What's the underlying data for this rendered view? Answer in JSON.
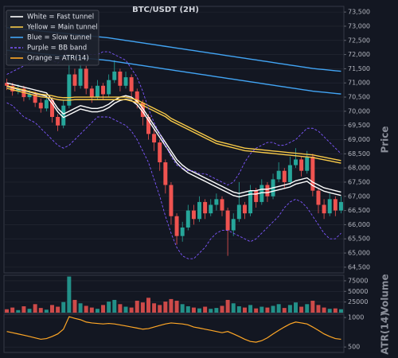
{
  "chart_data": [
    {
      "type": "candlestick",
      "title": "BTC/USDT (2H)",
      "ylabel": "Price",
      "grid": true,
      "up_color": "#26a69a",
      "down_color": "#ef5350",
      "ylim": [
        64300,
        73700
      ],
      "yticks": [
        {
          "value": 64500,
          "label": "64,500"
        },
        {
          "value": 65000,
          "label": "65,000"
        },
        {
          "value": 65500,
          "label": "65,500"
        },
        {
          "value": 66000,
          "label": "66,000"
        },
        {
          "value": 66500,
          "label": "66,500"
        },
        {
          "value": 67000,
          "label": "67,000"
        },
        {
          "value": 67500,
          "label": "67,500"
        },
        {
          "value": 68000,
          "label": "68,000"
        },
        {
          "value": 68500,
          "label": "68,500"
        },
        {
          "value": 69000,
          "label": "69,000"
        },
        {
          "value": 69500,
          "label": "69,500"
        },
        {
          "value": 70000,
          "label": "70,000"
        },
        {
          "value": 70500,
          "label": "70,500"
        },
        {
          "value": 71000,
          "label": "71,000"
        },
        {
          "value": 71500,
          "label": "71,500"
        },
        {
          "value": 72000,
          "label": "72,000"
        },
        {
          "value": 72500,
          "label": "72,500"
        },
        {
          "value": 73000,
          "label": "73,000"
        },
        {
          "value": 73500,
          "label": "73,500"
        }
      ],
      "open": [
        71000,
        70900,
        70700,
        70800,
        70500,
        70600,
        70300,
        70100,
        70400,
        69800,
        69500,
        70200,
        71300,
        70900,
        71500,
        70800,
        70500,
        70900,
        70600,
        71100,
        71400,
        70900,
        71200,
        70700,
        70300,
        69800,
        69200,
        68900,
        68200,
        67400,
        66300,
        65600,
        65900,
        66500,
        66200,
        66800,
        66400,
        66700,
        66900,
        66500,
        65800,
        66200,
        66700,
        66400,
        67200,
        66800,
        67400,
        67000,
        67600,
        67900,
        67500,
        68100,
        68300,
        67900,
        68400,
        67200,
        66700,
        66400,
        66900,
        66500
      ],
      "high": [
        71150,
        71000,
        70950,
        70900,
        70750,
        70700,
        70450,
        70550,
        70500,
        69900,
        70400,
        71900,
        71500,
        71700,
        71600,
        70900,
        71100,
        71000,
        71300,
        71800,
        71500,
        71400,
        71300,
        70800,
        70400,
        69900,
        69400,
        69000,
        68300,
        67500,
        66400,
        66100,
        66700,
        66700,
        67000,
        66900,
        66900,
        67100,
        67000,
        66600,
        66400,
        67500,
        66800,
        67400,
        67300,
        67600,
        67500,
        67800,
        68200,
        68000,
        68400,
        68700,
        68400,
        68600,
        68500,
        67300,
        66900,
        67100,
        67000,
        67000
      ],
      "low": [
        70750,
        70550,
        70600,
        70350,
        70400,
        70150,
        69950,
        70000,
        69600,
        69300,
        69400,
        70100,
        70700,
        70800,
        70600,
        70300,
        70400,
        70400,
        70500,
        71000,
        70700,
        70800,
        70500,
        70100,
        69500,
        69000,
        68600,
        67900,
        67100,
        66000,
        65300,
        65400,
        65800,
        66000,
        66100,
        66200,
        66300,
        66500,
        66300,
        64900,
        65600,
        66100,
        66200,
        66300,
        66600,
        66700,
        66800,
        66900,
        67500,
        67300,
        67400,
        68000,
        67700,
        67800,
        67000,
        66400,
        66200,
        66300,
        66300,
        66400
      ],
      "close": [
        70900,
        70700,
        70800,
        70500,
        70600,
        70300,
        70100,
        70400,
        69800,
        69500,
        70200,
        71300,
        70900,
        71500,
        70800,
        70500,
        70900,
        70600,
        71100,
        71400,
        70900,
        71200,
        70700,
        70300,
        69800,
        69200,
        68900,
        68200,
        67400,
        66300,
        65600,
        65900,
        66500,
        66200,
        66800,
        66400,
        66700,
        66900,
        66500,
        65800,
        66200,
        66700,
        66400,
        67200,
        66800,
        67400,
        67000,
        67600,
        67900,
        67500,
        68100,
        68300,
        67900,
        68400,
        67200,
        66700,
        66400,
        66900,
        66500,
        66800
      ],
      "overlays": [
        {
          "name": "White = Fast tunnel",
          "color": "#ffffff",
          "dash": false,
          "upper": [
            71000,
            70950,
            70900,
            70850,
            70800,
            70750,
            70700,
            70650,
            70400,
            70100,
            69900,
            70000,
            70100,
            70200,
            70150,
            70100,
            70100,
            70150,
            70250,
            70400,
            70500,
            70550,
            70500,
            70350,
            70100,
            69800,
            69500,
            69200,
            68900,
            68600,
            68300,
            68100,
            67950,
            67850,
            67750,
            67650,
            67550,
            67450,
            67350,
            67250,
            67150,
            67100,
            67150,
            67200,
            67200,
            67250,
            67250,
            67300,
            67350,
            67400,
            67450,
            67550,
            67600,
            67650,
            67500,
            67400,
            67300,
            67250,
            67200,
            67150
          ],
          "lower": [
            70880,
            70830,
            70780,
            70730,
            70680,
            70630,
            70580,
            70530,
            70280,
            69980,
            69780,
            69880,
            69980,
            70080,
            70030,
            69980,
            69980,
            70030,
            70130,
            70280,
            70380,
            70430,
            70380,
            70230,
            69980,
            69680,
            69380,
            69080,
            68780,
            68480,
            68180,
            67980,
            67830,
            67730,
            67630,
            67530,
            67430,
            67330,
            67230,
            67130,
            67030,
            66980,
            67030,
            67080,
            67080,
            67130,
            67130,
            67180,
            67230,
            67280,
            67330,
            67430,
            67480,
            67530,
            67380,
            67280,
            67180,
            67130,
            67080,
            67030
          ]
        },
        {
          "name": "Yellow = Main tunnel",
          "color": "#f7c948",
          "dash": false,
          "upper": [
            70900,
            70850,
            70800,
            70750,
            70700,
            70650,
            70600,
            70580,
            70550,
            70500,
            70480,
            70480,
            70500,
            70500,
            70500,
            70500,
            70500,
            70500,
            70500,
            70500,
            70500,
            70500,
            70450,
            70400,
            70300,
            70200,
            70100,
            70000,
            69900,
            69750,
            69650,
            69550,
            69450,
            69350,
            69250,
            69150,
            69050,
            68950,
            68900,
            68850,
            68800,
            68750,
            68700,
            68680,
            68660,
            68640,
            68620,
            68600,
            68580,
            68560,
            68540,
            68520,
            68500,
            68480,
            68460,
            68420,
            68380,
            68340,
            68300,
            68260
          ],
          "lower": [
            70810,
            70760,
            70710,
            70660,
            70610,
            70560,
            70510,
            70490,
            70460,
            70410,
            70390,
            70390,
            70410,
            70410,
            70410,
            70410,
            70410,
            70410,
            70410,
            70410,
            70410,
            70410,
            70360,
            70310,
            70210,
            70110,
            70010,
            69910,
            69810,
            69660,
            69560,
            69460,
            69360,
            69260,
            69160,
            69060,
            68960,
            68860,
            68810,
            68760,
            68710,
            68660,
            68610,
            68590,
            68570,
            68550,
            68530,
            68510,
            68490,
            68470,
            68450,
            68430,
            68410,
            68390,
            68370,
            68330,
            68290,
            68250,
            68210,
            68170
          ]
        },
        {
          "name": "Blue = Slow tunnel",
          "color": "#42a5f5",
          "dash": false,
          "upper": [
            72950,
            72930,
            72910,
            72890,
            72870,
            72850,
            72830,
            72810,
            72790,
            72770,
            72750,
            72730,
            72710,
            72690,
            72670,
            72650,
            72630,
            72610,
            72590,
            72560,
            72530,
            72500,
            72470,
            72440,
            72410,
            72380,
            72350,
            72320,
            72290,
            72260,
            72230,
            72200,
            72170,
            72140,
            72110,
            72080,
            72050,
            72020,
            71990,
            71960,
            71930,
            71900,
            71870,
            71840,
            71810,
            71780,
            71750,
            71720,
            71690,
            71660,
            71630,
            71600,
            71570,
            71540,
            71510,
            71490,
            71470,
            71450,
            71430,
            71410
          ],
          "lower": [
            72150,
            72130,
            72110,
            72090,
            72070,
            72050,
            72030,
            72010,
            71990,
            71970,
            71950,
            71930,
            71910,
            71890,
            71870,
            71850,
            71830,
            71810,
            71790,
            71760,
            71730,
            71700,
            71670,
            71640,
            71610,
            71580,
            71550,
            71520,
            71490,
            71460,
            71430,
            71400,
            71370,
            71340,
            71310,
            71280,
            71250,
            71220,
            71190,
            71160,
            71130,
            71100,
            71070,
            71040,
            71010,
            70980,
            70950,
            70920,
            70890,
            70860,
            70830,
            70800,
            70770,
            70740,
            70710,
            70690,
            70670,
            70650,
            70630,
            70610
          ]
        },
        {
          "name": "Purple = BB band",
          "color": "#7e57ff",
          "dash": true,
          "upper": [
            71300,
            71400,
            71500,
            71600,
            71700,
            71800,
            71900,
            71900,
            71800,
            71700,
            71900,
            72300,
            72200,
            72100,
            72000,
            72000,
            72000,
            72100,
            72100,
            72000,
            71900,
            71800,
            71500,
            71200,
            70700,
            70100,
            69600,
            69200,
            68800,
            68400,
            68100,
            68000,
            67900,
            67900,
            67800,
            67800,
            67700,
            67600,
            67500,
            67400,
            67500,
            67800,
            68200,
            68500,
            68700,
            68800,
            68900,
            68900,
            68800,
            68800,
            68900,
            69000,
            69200,
            69400,
            69400,
            69300,
            69100,
            68900,
            68700,
            68500
          ],
          "lower": [
            70300,
            70200,
            70000,
            69800,
            69700,
            69600,
            69400,
            69200,
            69000,
            68800,
            68700,
            68800,
            69000,
            69200,
            69400,
            69600,
            69800,
            69800,
            69800,
            69700,
            69600,
            69500,
            69300,
            69000,
            68600,
            68200,
            67600,
            67000,
            66300,
            65700,
            65200,
            64900,
            64800,
            64800,
            65000,
            65200,
            65500,
            65700,
            65800,
            65800,
            65700,
            65600,
            65500,
            65400,
            65500,
            65700,
            65900,
            66100,
            66300,
            66600,
            66800,
            66900,
            66800,
            66600,
            66300,
            66000,
            65700,
            65500,
            65500,
            65700
          ]
        }
      ]
    },
    {
      "type": "bar",
      "ylabel": "Volume",
      "grid": true,
      "ylim": [
        0,
        88000
      ],
      "yticks": [
        25000,
        50000,
        75000
      ],
      "values": [
        8000,
        12000,
        6000,
        15000,
        9000,
        20000,
        11000,
        7000,
        18000,
        14000,
        25000,
        85000,
        30000,
        22000,
        16000,
        12000,
        9000,
        18000,
        26000,
        30000,
        20000,
        14000,
        12000,
        28000,
        24000,
        35000,
        22000,
        18000,
        26000,
        32000,
        28000,
        20000,
        15000,
        12000,
        10000,
        14000,
        9000,
        11000,
        16000,
        30000,
        22000,
        15000,
        12000,
        18000,
        10000,
        14000,
        12000,
        16000,
        20000,
        11000,
        18000,
        24000,
        14000,
        20000,
        28000,
        18000,
        12000,
        9000,
        10000,
        8000
      ]
    },
    {
      "type": "line",
      "ylabel": "ATR(14)",
      "log_scale": true,
      "grid": true,
      "ylim": [
        440,
        1080
      ],
      "yticks": [
        500,
        1000
      ],
      "series": [
        {
          "name": "Orange = ATR(14)",
          "color": "#ffa726",
          "values": [
            720,
            700,
            680,
            660,
            640,
            620,
            600,
            610,
            640,
            680,
            760,
            1020,
            980,
            950,
            900,
            880,
            870,
            860,
            870,
            860,
            840,
            820,
            800,
            780,
            760,
            770,
            800,
            830,
            860,
            880,
            870,
            860,
            840,
            800,
            780,
            760,
            740,
            720,
            700,
            720,
            680,
            640,
            600,
            570,
            560,
            580,
            620,
            680,
            740,
            800,
            860,
            900,
            880,
            860,
            800,
            740,
            680,
            640,
            610,
            600
          ]
        }
      ]
    }
  ]
}
